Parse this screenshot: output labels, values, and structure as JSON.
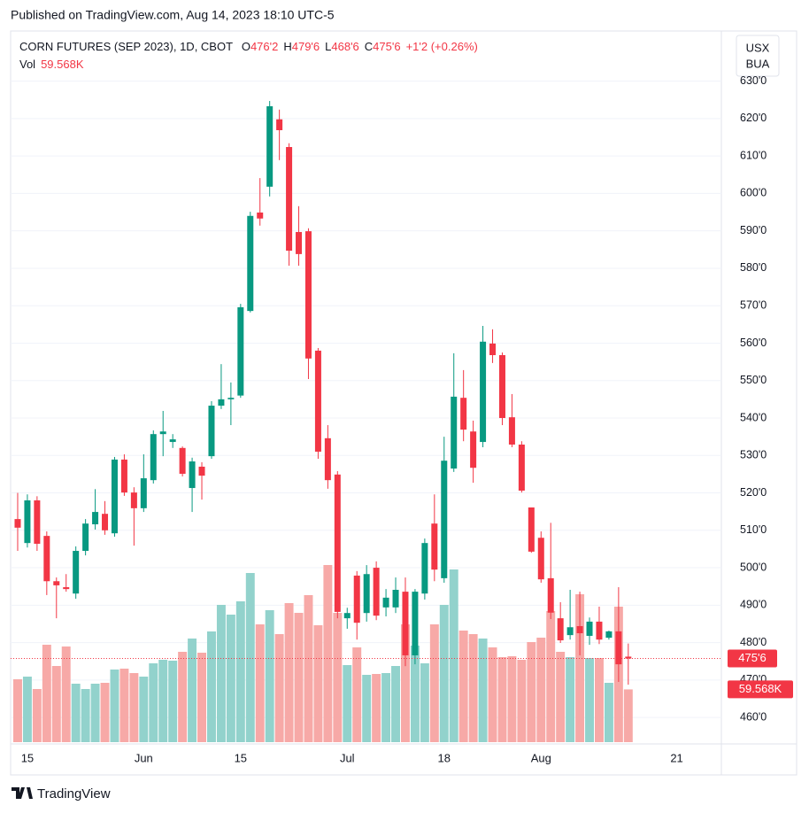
{
  "chart_data": {
    "type": "candlestick",
    "published": "Published on TradingView.com, Aug 14, 2023 18:10 UTC-5",
    "symbol": "CORN FUTURES (SEP 2023), 1D, CBOT",
    "ohlc_legend": [
      {
        "key": "O",
        "value": 476.25,
        "label": "476'2"
      },
      {
        "key": "H",
        "value": 479.75,
        "label": "479'6"
      },
      {
        "key": "L",
        "value": 468.75,
        "label": "468'6"
      },
      {
        "key": "C",
        "value": 475.75,
        "label": "475'6"
      }
    ],
    "change": "+1'2 (+0.26%)",
    "volume_name": "Vol",
    "volume_label": "59.568K",
    "unit_lines": [
      "USX",
      "BUA"
    ],
    "brand": "TradingView",
    "last_price": {
      "value": 475.75,
      "label": "475'6"
    },
    "categories": [
      null,
      "15",
      null,
      null,
      null,
      null,
      null,
      null,
      null,
      null,
      null,
      null,
      null,
      "Jun",
      null,
      null,
      null,
      null,
      null,
      null,
      null,
      null,
      null,
      "15",
      null,
      null,
      null,
      null,
      null,
      null,
      null,
      null,
      null,
      null,
      "Jul",
      null,
      null,
      null,
      null,
      null,
      null,
      null,
      null,
      null,
      "18",
      null,
      null,
      null,
      null,
      null,
      null,
      null,
      null,
      null,
      "Aug",
      null,
      null,
      null,
      null,
      null,
      null,
      null,
      null,
      null,
      null,
      null,
      null,
      null,
      "21",
      null,
      null,
      null,
      null
    ],
    "open": [
      513,
      506.6,
      518,
      508.5,
      496.4,
      494.8,
      493.1,
      504.5,
      511.6,
      514.4,
      509.2,
      528.9,
      520.1,
      515.9,
      523.4,
      535.7,
      533.6,
      532,
      521.3,
      527,
      529.8,
      543.3,
      545,
      546,
      568.6,
      594.9,
      601.8,
      619.8,
      612.4,
      589.7,
      589.9,
      558,
      534.6,
      524.9,
      486.5,
      497.9,
      487.9,
      500,
      489.4,
      489.4,
      493.6,
      476.6,
      493.1,
      511.8,
      497.2,
      526.5,
      545.4,
      536.4,
      533.6,
      559.9,
      556.8,
      540.2,
      532.9,
      516.1,
      508,
      497.2,
      486.5,
      482,
      484.4,
      481.8,
      485.6,
      481.3,
      483,
      476.25,
      null,
      null,
      null,
      null,
      null,
      null,
      null,
      null,
      null
    ],
    "high": [
      520,
      519.6,
      519.1,
      509.7,
      497.4,
      498.3,
      505.7,
      513,
      521,
      517.8,
      529.6,
      530.3,
      521.5,
      530.3,
      536.7,
      541.9,
      535.7,
      532.4,
      529.4,
      528.2,
      544.5,
      554.4,
      549.5,
      570.5,
      595.1,
      604.1,
      624.7,
      622.4,
      613.4,
      596.6,
      590.7,
      558.7,
      538.1,
      525.8,
      489.3,
      499.1,
      500.7,
      501.7,
      494.3,
      497.4,
      497.4,
      494.3,
      507.8,
      519.6,
      535,
      557.3,
      552.8,
      539.3,
      564.6,
      563.7,
      557.5,
      546.4,
      533.8,
      516.1,
      509.7,
      512,
      490.8,
      494.1,
      493.6,
      486.7,
      489.6,
      483.2,
      494.8,
      479.75,
      null,
      null,
      null,
      null,
      null,
      null,
      null,
      null,
      null
    ],
    "low": [
      504.5,
      505.4,
      504.5,
      492.7,
      486.5,
      493.6,
      491.7,
      503.3,
      510.2,
      508.8,
      508.3,
      519.2,
      505.9,
      514.9,
      522.5,
      529.8,
      532,
      524.4,
      514.9,
      518.2,
      529.1,
      542.4,
      538.1,
      545.4,
      568.2,
      591.4,
      599.2,
      608.9,
      580.7,
      580.7,
      550.4,
      529.1,
      521.1,
      486.5,
      483.7,
      480.8,
      485.6,
      486,
      487,
      487.9,
      473.7,
      474.2,
      491.5,
      496.4,
      496,
      525.6,
      533.8,
      522.7,
      532.2,
      554.7,
      538.1,
      532.2,
      520.1,
      504,
      496,
      486.3,
      479.9,
      480.8,
      476.6,
      479.4,
      479.6,
      480.8,
      469.5,
      468.75,
      null,
      null,
      null,
      null,
      null,
      null,
      null,
      null,
      null
    ],
    "close": [
      510.7,
      518,
      506.4,
      496.4,
      495.3,
      494.3,
      504.5,
      511.8,
      514.9,
      510,
      528.9,
      520.1,
      515.9,
      523.9,
      535.7,
      536.4,
      534.3,
      525.1,
      528.4,
      524.6,
      543.3,
      545,
      545.4,
      569.6,
      594,
      593.3,
      623.3,
      616.9,
      584.7,
      583.8,
      555.9,
      531,
      523.4,
      488.2,
      487.9,
      485.3,
      498.3,
      487.2,
      492,
      494.1,
      476.6,
      493.6,
      506.6,
      499.5,
      528.6,
      545.7,
      536.9,
      526.7,
      560.4,
      556.8,
      540,
      532.9,
      520.6,
      504.3,
      496.9,
      488,
      480.6,
      484.1,
      482.5,
      485.6,
      480.8,
      483,
      474.2,
      475.75,
      null,
      null,
      null,
      null,
      null,
      null,
      null,
      null,
      null
    ],
    "volume": [
      71,
      74,
      60,
      110,
      86,
      108,
      66,
      60,
      66,
      67,
      82,
      83,
      78,
      74,
      89,
      93,
      92,
      102,
      117,
      101,
      125,
      155,
      144,
      159,
      191,
      133,
      149,
      122,
      157,
      146,
      166,
      132,
      200,
      146,
      87,
      107,
      76,
      77,
      78,
      86,
      133,
      109,
      89,
      133,
      155,
      195,
      126,
      122,
      117,
      107,
      96,
      97,
      93,
      113,
      118,
      148,
      102,
      96,
      167,
      95,
      95,
      67,
      153,
      59.568,
      null,
      null,
      null,
      null,
      null,
      null,
      null,
      null,
      null
    ],
    "ylim": [
      453.4,
      643.4
    ],
    "yticks": [
      {
        "value": 460,
        "label": "460'0"
      },
      {
        "value": 470,
        "label": "470'0"
      },
      {
        "value": 480,
        "label": "480'0"
      },
      {
        "value": 490,
        "label": "490'0"
      },
      {
        "value": 500,
        "label": "500'0"
      },
      {
        "value": 510,
        "label": "510'0"
      },
      {
        "value": 520,
        "label": "520'0"
      },
      {
        "value": 530,
        "label": "530'0"
      },
      {
        "value": 540,
        "label": "540'0"
      },
      {
        "value": 550,
        "label": "550'0"
      },
      {
        "value": 560,
        "label": "560'0"
      },
      {
        "value": 570,
        "label": "570'0"
      },
      {
        "value": 580,
        "label": "580'0"
      },
      {
        "value": 590,
        "label": "590'0"
      },
      {
        "value": 600,
        "label": "600'0"
      },
      {
        "value": 610,
        "label": "610'0"
      },
      {
        "value": 620,
        "label": "620'0"
      },
      {
        "value": 630,
        "label": "630'0"
      }
    ],
    "y2lim": [
      0,
      803
    ],
    "grid": true,
    "up_color": "#089981",
    "down_color": "#f23645",
    "volume_up_color": "#92d2cc",
    "volume_down_color": "#f7a9a7"
  }
}
